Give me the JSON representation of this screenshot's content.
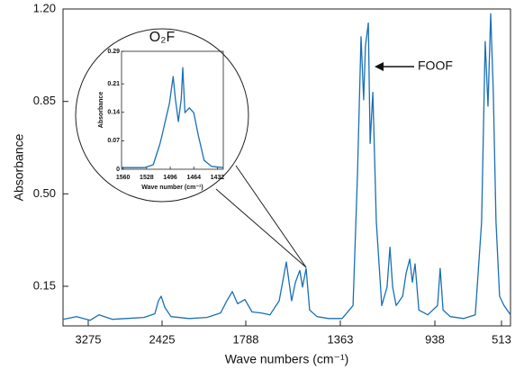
{
  "chart_data": [
    {
      "type": "line",
      "x_label": "Wave numbers (cm⁻¹)",
      "y_label": "Absorbance",
      "annotation": "FOOF",
      "color": "#1a6fb5",
      "xlim": [
        3565,
        456
      ],
      "ylim": [
        0,
        1.2
      ],
      "xticks": [
        3275,
        2425,
        1788,
        1363,
        938,
        513
      ],
      "yticks": [
        {
          "value": 1.2,
          "label": "1.20"
        },
        0.85,
        {
          "value": 0.5,
          "label": "0.50"
        },
        0.15
      ],
      "x": [
        3565,
        3410,
        3254,
        3151,
        2995,
        2840,
        2633,
        2508,
        2466,
        2435,
        2404,
        2357,
        2220,
        2083,
        1980,
        1932,
        1891,
        1850,
        1795,
        1760,
        1719,
        1679,
        1638,
        1606,
        1582,
        1565,
        1545,
        1533,
        1517,
        1501,
        1468,
        1416,
        1355,
        1306,
        1286,
        1270,
        1258,
        1250,
        1237,
        1229,
        1217,
        1201,
        1177,
        1153,
        1140,
        1128,
        1112,
        1083,
        1067,
        1051,
        1039,
        1027,
        1010,
        970,
        921,
        904,
        886,
        840,
        754,
        680,
        640,
        617,
        599,
        582,
        565,
        548,
        525,
        497,
        456
      ],
      "values": [
        0.025,
        0.035,
        0.021,
        0.042,
        0.025,
        0.028,
        0.032,
        0.046,
        0.095,
        0.112,
        0.07,
        0.035,
        0.028,
        0.032,
        0.049,
        0.095,
        0.13,
        0.084,
        0.1,
        0.053,
        0.049,
        0.042,
        0.095,
        0.242,
        0.095,
        0.165,
        0.21,
        0.147,
        0.218,
        0.06,
        0.035,
        0.028,
        0.028,
        0.077,
        0.568,
        1.095,
        0.856,
        1.06,
        1.147,
        0.691,
        0.884,
        0.393,
        0.077,
        0.147,
        0.298,
        0.147,
        0.077,
        0.112,
        0.2,
        0.253,
        0.165,
        0.235,
        0.06,
        0.042,
        0.077,
        0.218,
        0.06,
        0.035,
        0.028,
        0.042,
        0.393,
        1.077,
        0.832,
        1.182,
        0.884,
        0.393,
        0.112,
        0.077,
        0.042
      ]
    },
    {
      "type": "line",
      "title": "O₂F",
      "x_label": "Wave number (cm⁻¹)",
      "y_label": "Absorbance",
      "color": "#1a6fb5",
      "xlim": [
        1562,
        1424
      ],
      "ylim": [
        0,
        0.29
      ],
      "xticks": [
        1560,
        1528,
        1496,
        1464,
        1432
      ],
      "yticks": [
        0,
        0.07,
        0.14,
        0.21,
        0.29
      ],
      "x": [
        1562,
        1531,
        1519,
        1510,
        1507,
        1497,
        1492,
        1489,
        1485,
        1481,
        1479,
        1476,
        1470,
        1464,
        1458,
        1450,
        1440,
        1424
      ],
      "values": [
        0.004,
        0.004,
        0.011,
        0.062,
        0.084,
        0.162,
        0.228,
        0.173,
        0.117,
        0.173,
        0.25,
        0.139,
        0.151,
        0.139,
        0.084,
        0.022,
        0.007,
        0.004
      ]
    }
  ]
}
